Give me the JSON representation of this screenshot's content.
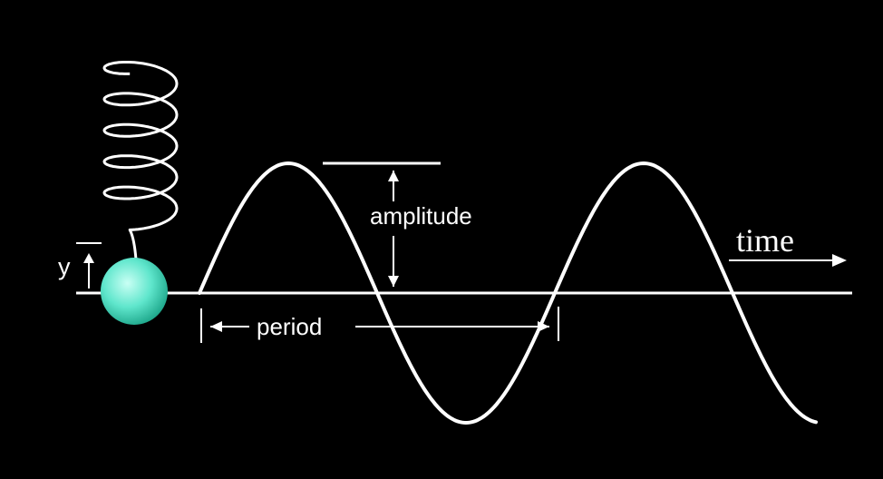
{
  "labels": {
    "y": "y",
    "amplitude": "amplitude",
    "period": "period",
    "time": "time"
  },
  "colors": {
    "background": "#000000",
    "stroke": "#ffffff",
    "mass_light": "#b8fff0",
    "mass_mid": "#5fe6cc",
    "mass_dark": "#1fa88c"
  }
}
